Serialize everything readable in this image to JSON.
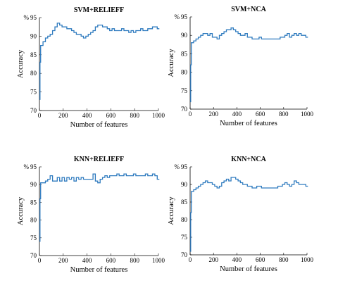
{
  "chart_data": [
    {
      "type": "line",
      "title": "SVM+RELIEFF",
      "xlabel": "Number of features",
      "ylabel": "Accuracy",
      "y_unit": "%",
      "xlim": [
        0,
        1000
      ],
      "ylim": [
        70,
        95
      ],
      "xticks": [
        0,
        200,
        400,
        600,
        800,
        1000
      ],
      "yticks": [
        70,
        75,
        80,
        85,
        90,
        95
      ],
      "series": [
        {
          "color": "#2f7bbf",
          "x": [
            1,
            5,
            10,
            30,
            50,
            70,
            90,
            110,
            130,
            150,
            170,
            190,
            210,
            230,
            250,
            270,
            290,
            310,
            330,
            350,
            370,
            390,
            410,
            430,
            450,
            470,
            490,
            510,
            530,
            550,
            570,
            590,
            610,
            630,
            650,
            670,
            690,
            710,
            730,
            750,
            770,
            790,
            810,
            830,
            850,
            870,
            890,
            910,
            930,
            950,
            970,
            990
          ],
          "y": [
            73,
            83,
            87.5,
            88.5,
            89.5,
            90,
            90.5,
            91.5,
            92.5,
            93.5,
            93.0,
            92.5,
            92.5,
            92.0,
            92.0,
            91.5,
            91.0,
            90.5,
            90.5,
            90.0,
            89.5,
            90.0,
            90.5,
            91.0,
            91.5,
            92.5,
            93.0,
            93.0,
            92.5,
            92.5,
            92.0,
            91.5,
            92.0,
            91.5,
            91.5,
            91.5,
            92.0,
            91.5,
            91.5,
            91.0,
            91.5,
            91.0,
            91.5,
            91.5,
            92.0,
            91.5,
            91.5,
            92.0,
            92.0,
            92.5,
            92.5,
            92.0
          ]
        }
      ]
    },
    {
      "type": "line",
      "title": "SVM+NCA",
      "xlabel": "Number of features",
      "ylabel": "Accuracy",
      "y_unit": "%",
      "xlim": [
        0,
        1000
      ],
      "ylim": [
        70,
        95
      ],
      "xticks": [
        0,
        200,
        400,
        600,
        800,
        1000
      ],
      "yticks": [
        70,
        75,
        80,
        85,
        90,
        95
      ],
      "series": [
        {
          "color": "#2f7bbf",
          "x": [
            1,
            5,
            10,
            30,
            50,
            70,
            90,
            110,
            130,
            150,
            170,
            190,
            210,
            230,
            250,
            270,
            290,
            310,
            330,
            350,
            370,
            390,
            410,
            430,
            450,
            470,
            490,
            510,
            530,
            550,
            570,
            590,
            610,
            630,
            650,
            670,
            690,
            710,
            730,
            750,
            770,
            790,
            810,
            830,
            850,
            870,
            890,
            910,
            930,
            950,
            970,
            990
          ],
          "y": [
            72,
            82,
            88,
            88.5,
            89.0,
            89.5,
            90.0,
            90.5,
            90.5,
            90.0,
            90.5,
            89.5,
            89.5,
            89.0,
            90.0,
            90.5,
            91.0,
            91.5,
            91.5,
            92.0,
            91.5,
            91.0,
            90.5,
            90.0,
            90.0,
            90.5,
            89.5,
            89.5,
            89.0,
            89.0,
            89.0,
            89.5,
            89.0,
            89.0,
            89.0,
            89.0,
            89.0,
            89.0,
            89.0,
            89.0,
            89.5,
            89.5,
            90.0,
            90.5,
            89.5,
            90.0,
            90.5,
            90.0,
            90.5,
            90.0,
            90.0,
            89.5
          ]
        }
      ]
    },
    {
      "type": "line",
      "title": "KNN+RELIEFF",
      "xlabel": "Number of features",
      "ylabel": "Accuracy",
      "y_unit": "%",
      "xlim": [
        0,
        1000
      ],
      "ylim": [
        70,
        95
      ],
      "xticks": [
        0,
        200,
        400,
        600,
        800,
        1000
      ],
      "yticks": [
        70,
        75,
        80,
        85,
        90,
        95
      ],
      "series": [
        {
          "color": "#2f7bbf",
          "x": [
            1,
            5,
            10,
            30,
            50,
            70,
            90,
            110,
            130,
            150,
            170,
            190,
            210,
            230,
            250,
            270,
            290,
            310,
            330,
            350,
            370,
            390,
            410,
            430,
            450,
            470,
            490,
            510,
            530,
            550,
            570,
            590,
            610,
            630,
            650,
            670,
            690,
            710,
            730,
            750,
            770,
            790,
            810,
            830,
            850,
            870,
            890,
            910,
            930,
            950,
            970,
            990
          ],
          "y": [
            74,
            86,
            90.5,
            90.5,
            91.0,
            91.5,
            92.5,
            91.0,
            91.0,
            92.0,
            91.0,
            92.0,
            91.0,
            92.0,
            91.5,
            92.0,
            91.0,
            92.0,
            91.5,
            92.0,
            91.5,
            91.5,
            91.5,
            91.5,
            93.0,
            91.0,
            90.5,
            91.5,
            92.0,
            92.5,
            92.0,
            92.5,
            92.5,
            92.5,
            93.0,
            92.5,
            92.5,
            93.0,
            92.5,
            92.5,
            92.5,
            93.0,
            92.5,
            92.5,
            92.5,
            92.5,
            93.0,
            92.5,
            92.5,
            93.0,
            92.5,
            91.5
          ]
        }
      ]
    },
    {
      "type": "line",
      "title": "KNN+NCA",
      "xlabel": "Number of features",
      "ylabel": "Accuracy",
      "y_unit": "%",
      "xlim": [
        0,
        1000
      ],
      "ylim": [
        70,
        95
      ],
      "xticks": [
        0,
        200,
        400,
        600,
        800,
        1000
      ],
      "yticks": [
        70,
        75,
        80,
        85,
        90,
        95
      ],
      "series": [
        {
          "color": "#2f7bbf",
          "x": [
            1,
            5,
            10,
            30,
            50,
            70,
            90,
            110,
            130,
            150,
            170,
            190,
            210,
            230,
            250,
            270,
            290,
            310,
            330,
            350,
            370,
            390,
            410,
            430,
            450,
            470,
            490,
            510,
            530,
            550,
            570,
            590,
            610,
            630,
            650,
            670,
            690,
            710,
            730,
            750,
            770,
            790,
            810,
            830,
            850,
            870,
            890,
            910,
            930,
            950,
            970,
            990
          ],
          "y": [
            71,
            82,
            88,
            88.5,
            89.0,
            89.5,
            90.0,
            90.5,
            91.0,
            90.5,
            90.5,
            90.0,
            89.5,
            89.0,
            89.5,
            90.5,
            91.0,
            91.5,
            91.0,
            92.0,
            92.0,
            91.5,
            91.0,
            90.5,
            90.0,
            90.0,
            89.5,
            89.5,
            89.0,
            89.0,
            89.5,
            89.5,
            89.0,
            89.0,
            89.0,
            89.0,
            89.0,
            89.0,
            89.0,
            89.5,
            89.5,
            90.0,
            90.5,
            90.0,
            89.5,
            90.0,
            91.0,
            90.5,
            90.0,
            90.0,
            90.0,
            89.5
          ]
        }
      ]
    }
  ]
}
